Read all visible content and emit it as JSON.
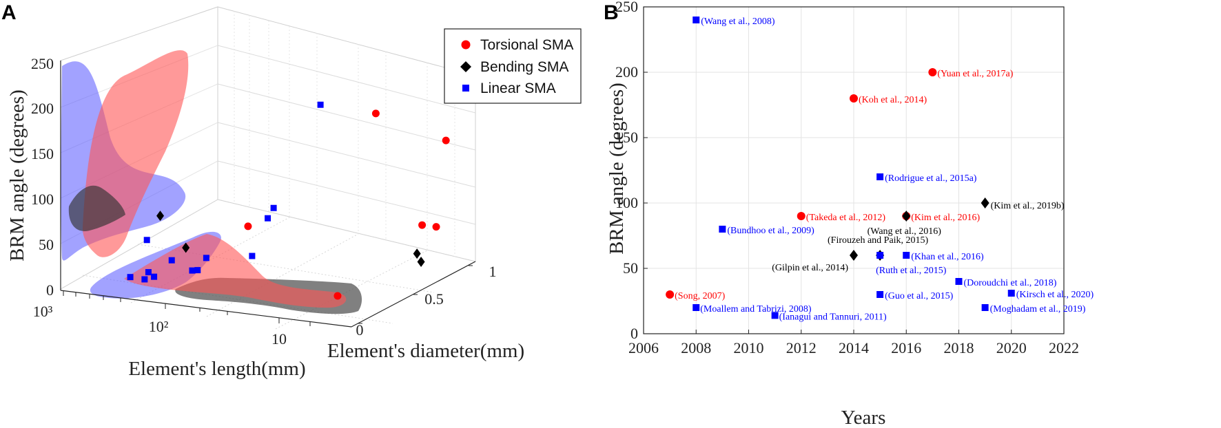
{
  "panels": {
    "a_letter": "A",
    "b_letter": "B"
  },
  "chart_data": [
    {
      "type": "scatter3d",
      "title": "",
      "xlabel": "Element's length(mm)",
      "ylabel": "Element's diameter(mm)",
      "zlabel": "BRM angle (degrees)",
      "x_ticks": [
        "10",
        "10²",
        "10³"
      ],
      "y_ticks": [
        "0",
        "0.5",
        "1"
      ],
      "z_ticks": [
        "0",
        "50",
        "100",
        "150",
        "200",
        "250"
      ],
      "zlim": [
        0,
        250
      ],
      "legend": [
        "Torsional SMA",
        "Bending SMA",
        "Linear SMA"
      ],
      "legend_position": "top-right",
      "series": [
        {
          "name": "Torsional SMA",
          "color": "#ff0000",
          "marker": "circle",
          "points": [
            {
              "length": 15,
              "diameter": 0.1,
              "angle": 30
            },
            {
              "length": 90,
              "diameter": 0.3,
              "angle": 90
            },
            {
              "length": 40,
              "diameter": 0.95,
              "angle": 200
            },
            {
              "length": 12,
              "diameter": 0.9,
              "angle": 180
            },
            {
              "length": 10,
              "diameter": 0.6,
              "angle": 90
            },
            {
              "length": 8,
              "diameter": 0.6,
              "angle": 90
            }
          ]
        },
        {
          "name": "Bending SMA",
          "color": "#000000",
          "marker": "diamond",
          "points": [
            {
              "length": 300,
              "diameter": 0.2,
              "angle": 100
            },
            {
              "length": 200,
              "diameter": 0.2,
              "angle": 60
            },
            {
              "length": 9,
              "diameter": 0.5,
              "angle": 60
            },
            {
              "length": 7,
              "diameter": 0.4,
              "angle": 60
            }
          ]
        },
        {
          "name": "Linear SMA",
          "color": "#0000ff",
          "marker": "square",
          "points": [
            {
              "length": 400,
              "diameter": 0.1,
              "angle": 20
            },
            {
              "length": 350,
              "diameter": 0.15,
              "angle": 14
            },
            {
              "length": 300,
              "diameter": 0.1,
              "angle": 30
            },
            {
              "length": 280,
              "diameter": 0.05,
              "angle": 80
            },
            {
              "length": 250,
              "diameter": 0.05,
              "angle": 30
            },
            {
              "length": 250,
              "diameter": 0.2,
              "angle": 40
            },
            {
              "length": 200,
              "diameter": 0.3,
              "angle": 20
            },
            {
              "length": 150,
              "diameter": 0.1,
              "angle": 40
            },
            {
              "length": 120,
              "diameter": 0.1,
              "angle": 60
            },
            {
              "length": 70,
              "diameter": 0.2,
              "angle": 60
            },
            {
              "length": 60,
              "diameter": 0.25,
              "angle": 110
            },
            {
              "length": 60,
              "diameter": 0.3,
              "angle": 120
            },
            {
              "length": 50,
              "diameter": 0.6,
              "angle": 240
            }
          ]
        }
      ]
    },
    {
      "type": "scatter",
      "title": "",
      "xlabel": "Years",
      "ylabel": "BRM angle (degrees)",
      "x_tick_labels": [
        "2006",
        "2008",
        "2010",
        "2012",
        "2014",
        "2016",
        "2018",
        "2020",
        "2022"
      ],
      "y_tick_labels": [
        "0",
        "50",
        "100",
        "150",
        "200",
        "250"
      ],
      "xlim": [
        2006,
        2022
      ],
      "ylim": [
        0,
        250
      ],
      "grid": true,
      "series": [
        {
          "name": "Torsional SMA",
          "color": "#ff0000",
          "marker": "circle",
          "points": [
            {
              "x": 2007,
              "y": 30,
              "label": "(Song, 2007)"
            },
            {
              "x": 2012,
              "y": 90,
              "label": "(Takeda et al., 2012)"
            },
            {
              "x": 2014,
              "y": 180,
              "label": "(Koh et al., 2014)"
            },
            {
              "x": 2016,
              "y": 90,
              "label": "(Kim et al., 2016)"
            },
            {
              "x": 2017,
              "y": 200,
              "label": "(Yuan et al., 2017a)"
            }
          ]
        },
        {
          "name": "Bending SMA",
          "color": "#000000",
          "marker": "diamond",
          "points": [
            {
              "x": 2014,
              "y": 60,
              "label": "(Gilpin et al., 2014)"
            },
            {
              "x": 2015,
              "y": 60,
              "label": "(Firouzeh and Paik, 2015)"
            },
            {
              "x": 2016,
              "y": 90,
              "label": "(Wang et al., 2016)"
            },
            {
              "x": 2019,
              "y": 100,
              "label": "(Kim et al., 2019b)"
            }
          ]
        },
        {
          "name": "Linear SMA",
          "color": "#0000ff",
          "marker": "square",
          "points": [
            {
              "x": 2008,
              "y": 240,
              "label": "(Wang et al., 2008)"
            },
            {
              "x": 2008,
              "y": 20,
              "label": "(Moallem and Tabrizi, 2008)"
            },
            {
              "x": 2009,
              "y": 80,
              "label": "(Bundhoo et al., 2009)"
            },
            {
              "x": 2011,
              "y": 14,
              "label": "(Ianagui and Tannuri, 2011)"
            },
            {
              "x": 2015,
              "y": 120,
              "label": "(Rodrigue et al., 2015a)"
            },
            {
              "x": 2015,
              "y": 60,
              "label": "(Ruth et al., 2015)"
            },
            {
              "x": 2015,
              "y": 30,
              "label": "(Guo et al., 2015)"
            },
            {
              "x": 2016,
              "y": 60,
              "label": "(Khan et al., 2016)"
            },
            {
              "x": 2018,
              "y": 40,
              "label": "(Doroudchi et al., 2018)"
            },
            {
              "x": 2019,
              "y": 20,
              "label": "(Moghadam et al., 2019)"
            },
            {
              "x": 2020,
              "y": 31,
              "label": "(Kirsch et al., 2020)"
            }
          ]
        }
      ]
    }
  ]
}
